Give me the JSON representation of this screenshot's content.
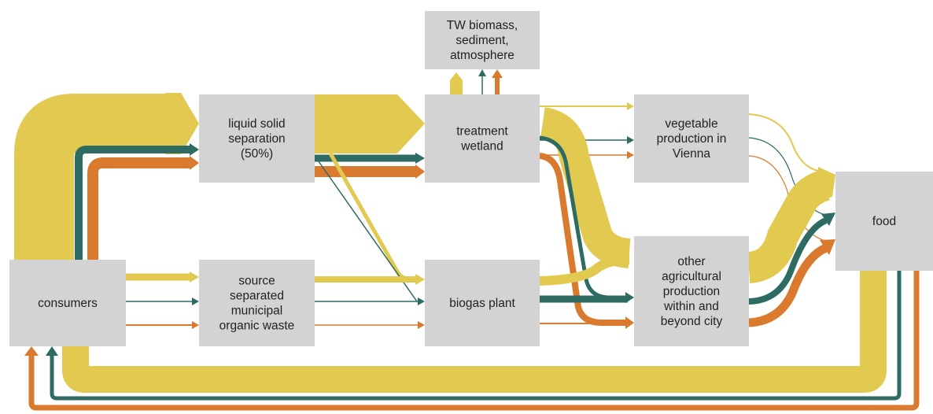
{
  "nodes": [
    {
      "label": [
        "consumers"
      ]
    },
    {
      "label": [
        "liquid solid",
        "separation",
        "(50%)"
      ]
    },
    {
      "label": [
        "source",
        "separated",
        "municipal",
        "organic waste"
      ]
    },
    {
      "label": [
        "TW biomass,",
        "sediment,",
        "atmosphere"
      ]
    },
    {
      "label": [
        "treatment",
        "wetland"
      ]
    },
    {
      "label": [
        "biogas plant"
      ]
    },
    {
      "label": [
        "vegetable",
        "production in",
        "Vienna"
      ]
    },
    {
      "label": [
        "other",
        "agricultural",
        "production",
        "within and",
        "beyond city"
      ]
    },
    {
      "label": [
        "food"
      ]
    }
  ]
}
